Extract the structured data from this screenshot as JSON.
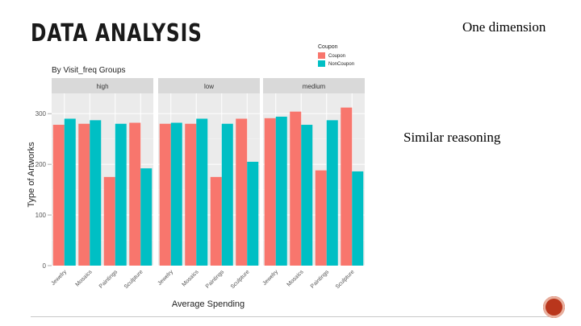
{
  "slide": {
    "title": "DATA ANALYSIS",
    "note_top": "One dimension",
    "note_middle": "Similar reasoning",
    "nav_icon": "next-slide-circle-icon"
  },
  "chart_data": {
    "type": "bar",
    "subtitle": "By Visit_freq Groups",
    "xlabel": "Average Spending",
    "ylabel": "Type of Artworks",
    "ylim": [
      0,
      340
    ],
    "yticks": [
      0,
      100,
      200,
      300
    ],
    "categories": [
      "Jewelry",
      "Mosaics",
      "Paintings",
      "Sculpture"
    ],
    "facets": [
      "high",
      "low",
      "medium"
    ],
    "legend": {
      "title": "Coupon",
      "position": "top-right",
      "entries": [
        "Coupon",
        "NonCoupon"
      ]
    },
    "colors": {
      "Coupon": "#f8766d",
      "NonCoupon": "#00bfc4",
      "panel_bg": "#ebebeb",
      "strip_bg": "#d9d9d9"
    },
    "series": [
      {
        "name": "Coupon",
        "facet": "high",
        "values": [
          278,
          280,
          175,
          282
        ]
      },
      {
        "name": "NonCoupon",
        "facet": "high",
        "values": [
          290,
          287,
          280,
          192
        ]
      },
      {
        "name": "Coupon",
        "facet": "low",
        "values": [
          280,
          280,
          175,
          290
        ]
      },
      {
        "name": "NonCoupon",
        "facet": "low",
        "values": [
          282,
          290,
          280,
          205
        ]
      },
      {
        "name": "Coupon",
        "facet": "medium",
        "values": [
          291,
          304,
          188,
          312
        ]
      },
      {
        "name": "NonCoupon",
        "facet": "medium",
        "values": [
          294,
          278,
          287,
          186
        ]
      }
    ],
    "grid": true
  }
}
